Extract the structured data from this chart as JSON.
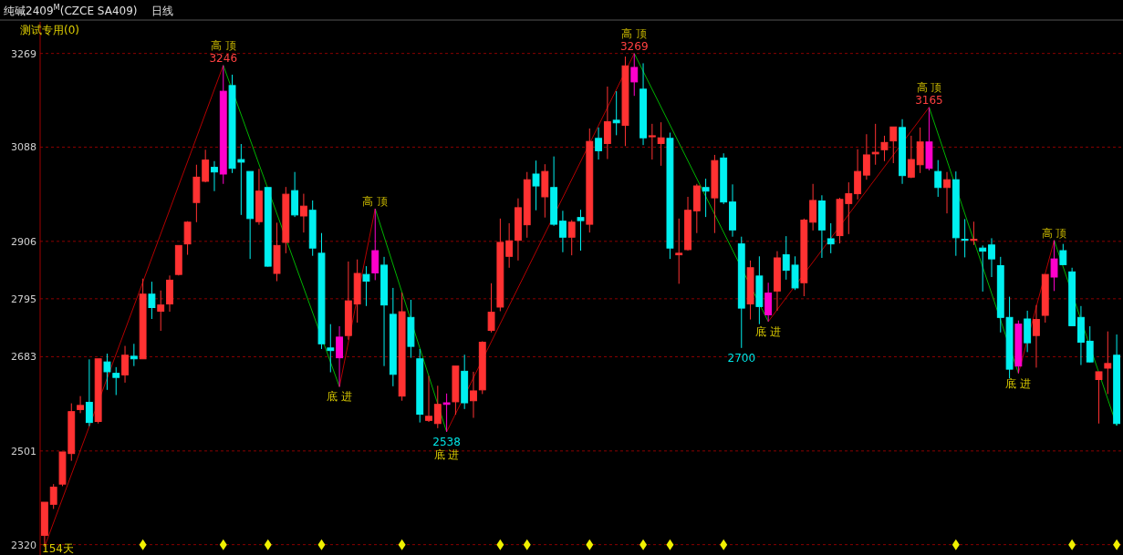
{
  "chart_data": {
    "type": "candlestick",
    "title": "纯碱2409$^{M}$(CZCE SA409)",
    "subtitle": "日线",
    "categories": [
      null,
      null,
      null,
      null,
      null,
      null,
      null,
      null,
      null,
      null,
      null,
      null,
      null,
      null,
      null,
      null,
      null,
      null,
      null,
      null,
      null,
      null,
      null,
      null,
      null,
      null,
      null,
      null,
      null,
      null,
      null,
      null,
      null,
      null,
      null,
      null,
      null,
      null,
      null,
      null,
      null,
      null,
      null,
      null,
      null,
      null,
      null,
      null,
      null,
      null,
      null,
      null,
      null,
      null,
      null,
      null,
      null,
      null,
      null,
      null,
      null,
      null,
      null,
      null,
      null,
      null,
      null,
      null,
      null,
      null,
      null,
      null,
      null,
      null,
      null,
      null,
      null,
      null,
      null,
      null,
      null,
      null,
      null,
      null,
      null,
      null,
      null,
      null,
      null,
      null,
      null,
      null,
      null,
      null,
      null,
      null,
      null,
      null,
      null,
      null,
      null,
      null,
      null,
      null,
      null,
      null,
      null,
      null,
      null,
      null,
      null,
      null,
      null,
      null,
      null,
      null,
      null,
      null,
      null,
      null,
      null
    ],
    "ohlc": [
      [
        2338,
        2402,
        2316,
        2402
      ],
      [
        2398,
        2437,
        2389,
        2431
      ],
      [
        2437,
        2499,
        2433,
        2499
      ],
      [
        2496,
        2593,
        2482,
        2577
      ],
      [
        2581,
        2607,
        2574,
        2589
      ],
      [
        2595,
        2678,
        2549,
        2556
      ],
      [
        2558,
        2679,
        2554,
        2679
      ],
      [
        2673,
        2689,
        2619,
        2654
      ],
      [
        2651,
        2663,
        2609,
        2643
      ],
      [
        2648,
        2704,
        2633,
        2686
      ],
      [
        2684,
        2708,
        2665,
        2679
      ],
      [
        2679,
        2834,
        2679,
        2804
      ],
      [
        2804,
        2828,
        2756,
        2778
      ],
      [
        2771,
        2811,
        2733,
        2783
      ],
      [
        2785,
        2840,
        2770,
        2831
      ],
      [
        2842,
        2898,
        2840,
        2898
      ],
      [
        2901,
        2945,
        2880,
        2943
      ],
      [
        2981,
        3054,
        2943,
        3030
      ],
      [
        3022,
        3083,
        3020,
        3063
      ],
      [
        3049,
        3061,
        3003,
        3040
      ],
      [
        3036,
        3246,
        3017,
        3196
      ],
      [
        3207,
        3228,
        3038,
        3047
      ],
      [
        3064,
        3094,
        2957,
        3059
      ],
      [
        3041,
        3041,
        2872,
        2950
      ],
      [
        2944,
        3046,
        2938,
        3003
      ],
      [
        3010,
        3010,
        2857,
        2858
      ],
      [
        2844,
        2942,
        2829,
        2898
      ],
      [
        2904,
        3011,
        2883,
        2997
      ],
      [
        3004,
        3040,
        2953,
        2957
      ],
      [
        2955,
        2998,
        2923,
        2974
      ],
      [
        2966,
        2985,
        2878,
        2893
      ],
      [
        2883,
        2922,
        2698,
        2708
      ],
      [
        2700,
        2746,
        2653,
        2695
      ],
      [
        2681,
        2742,
        2625,
        2721
      ],
      [
        2724,
        2867,
        2716,
        2791
      ],
      [
        2785,
        2871,
        2749,
        2844
      ],
      [
        2842,
        2858,
        2781,
        2829
      ],
      [
        2845,
        2969,
        2831,
        2888
      ],
      [
        2860,
        2876,
        2665,
        2783
      ],
      [
        2765,
        2816,
        2626,
        2649
      ],
      [
        2607,
        2807,
        2598,
        2770
      ],
      [
        2759,
        2793,
        2681,
        2703
      ],
      [
        2679,
        2698,
        2556,
        2572
      ],
      [
        2560,
        2646,
        2557,
        2568
      ],
      [
        2554,
        2627,
        2545,
        2591
      ],
      [
        2591,
        2612,
        2538,
        2594
      ],
      [
        2596,
        2665,
        2571,
        2665
      ],
      [
        2655,
        2687,
        2582,
        2594
      ],
      [
        2598,
        2654,
        2565,
        2617
      ],
      [
        2619,
        2713,
        2611,
        2711
      ],
      [
        2734,
        2825,
        2730,
        2769
      ],
      [
        2779,
        2950,
        2771,
        2904
      ],
      [
        2877,
        2941,
        2855,
        2907
      ],
      [
        2908,
        2989,
        2869,
        2971
      ],
      [
        2938,
        3040,
        2913,
        3025
      ],
      [
        3036,
        3062,
        2966,
        3013
      ],
      [
        2992,
        3055,
        2952,
        3041
      ],
      [
        3010,
        3070,
        2936,
        2939
      ],
      [
        2945,
        2965,
        2885,
        2914
      ],
      [
        2914,
        2947,
        2879,
        2943
      ],
      [
        2952,
        2967,
        2888,
        2946
      ],
      [
        2939,
        3124,
        2923,
        3099
      ],
      [
        3105,
        3126,
        3064,
        3081
      ],
      [
        3095,
        3205,
        3065,
        3137
      ],
      [
        3140,
        3196,
        3111,
        3135
      ],
      [
        3130,
        3263,
        3090,
        3245
      ],
      [
        3214,
        3269,
        3187,
        3242
      ],
      [
        3200,
        3250,
        3092,
        3106
      ],
      [
        3108,
        3133,
        3064,
        3110
      ],
      [
        3095,
        3136,
        3052,
        3106
      ],
      [
        3105,
        3116,
        2872,
        2893
      ],
      [
        2880,
        2950,
        2824,
        2883
      ],
      [
        2890,
        2992,
        2888,
        2966
      ],
      [
        2965,
        3017,
        2922,
        3013
      ],
      [
        3010,
        3027,
        2953,
        3003
      ],
      [
        2990,
        3073,
        2922,
        3062
      ],
      [
        3067,
        3076,
        2978,
        2982
      ],
      [
        2982,
        3016,
        2915,
        2928
      ],
      [
        2901,
        2915,
        2700,
        2777
      ],
      [
        2785,
        2869,
        2755,
        2855
      ],
      [
        2839,
        2877,
        2746,
        2780
      ],
      [
        2764,
        2826,
        2751,
        2806
      ],
      [
        2810,
        2887,
        2772,
        2874
      ],
      [
        2880,
        2916,
        2832,
        2850
      ],
      [
        2860,
        2877,
        2812,
        2816
      ],
      [
        2826,
        2950,
        2800,
        2947
      ],
      [
        2943,
        3017,
        2927,
        2985
      ],
      [
        2984,
        2995,
        2874,
        2928
      ],
      [
        2911,
        2941,
        2883,
        2901
      ],
      [
        2917,
        2990,
        2902,
        2987
      ],
      [
        2979,
        3020,
        2920,
        2998
      ],
      [
        2998,
        3084,
        2987,
        3041
      ],
      [
        3034,
        3113,
        3025,
        3073
      ],
      [
        3075,
        3133,
        3054,
        3078
      ],
      [
        3083,
        3110,
        3061,
        3097
      ],
      [
        3100,
        3127,
        3057,
        3127
      ],
      [
        3126,
        3142,
        3017,
        3033
      ],
      [
        3030,
        3110,
        3028,
        3064
      ],
      [
        3054,
        3126,
        3038,
        3098
      ],
      [
        3047,
        3165,
        3043,
        3098
      ],
      [
        3041,
        3063,
        2992,
        3010
      ],
      [
        3010,
        3040,
        2960,
        3025
      ],
      [
        3025,
        3041,
        2878,
        2913
      ],
      [
        2910,
        2949,
        2875,
        2908
      ],
      [
        2908,
        2944,
        2899,
        2910
      ],
      [
        2893,
        2898,
        2809,
        2887
      ],
      [
        2899,
        2912,
        2837,
        2872
      ],
      [
        2859,
        2876,
        2730,
        2759
      ],
      [
        2759,
        2799,
        2641,
        2659
      ],
      [
        2665,
        2753,
        2651,
        2746
      ],
      [
        2756,
        2772,
        2692,
        2710
      ],
      [
        2724,
        2783,
        2662,
        2755
      ],
      [
        2763,
        2842,
        2749,
        2842
      ],
      [
        2837,
        2908,
        2810,
        2872
      ],
      [
        2888,
        2901,
        2860,
        2861
      ],
      [
        2847,
        2855,
        2742,
        2743
      ],
      [
        2759,
        2781,
        2667,
        2711
      ],
      [
        2713,
        2742,
        2672,
        2673
      ],
      [
        2639,
        2654,
        2554,
        2654
      ],
      [
        2661,
        2732,
        2611,
        2670
      ],
      [
        2686,
        2726,
        2550,
        2554
      ]
    ],
    "colors": [
      "#ff3232",
      "#ff3232",
      "#ff3232",
      "#ff3232",
      "#ff3232",
      "#00f0f0",
      "#ff3232",
      "#00f0f0",
      "#00f0f0",
      "#ff3232",
      "#00f0f0",
      "#ff3232",
      "#00f0f0",
      "#ff3232",
      "#ff3232",
      "#ff3232",
      "#ff3232",
      "#ff3232",
      "#ff3232",
      "#00f0f0",
      "#ff00cc",
      "#00f0f0",
      "#00f0f0",
      "#00f0f0",
      "#ff3232",
      "#00f0f0",
      "#ff3232",
      "#ff3232",
      "#00f0f0",
      "#ff3232",
      "#00f0f0",
      "#00f0f0",
      "#00f0f0",
      "#ff00cc",
      "#ff3232",
      "#ff3232",
      "#00f0f0",
      "#ff00cc",
      "#00f0f0",
      "#00f0f0",
      "#ff3232",
      "#00f0f0",
      "#00f0f0",
      "#ff3232",
      "#ff3232",
      "#ff00cc",
      "#ff3232",
      "#00f0f0",
      "#ff3232",
      "#ff3232",
      "#ff3232",
      "#ff3232",
      "#ff3232",
      "#ff3232",
      "#ff3232",
      "#00f0f0",
      "#ff3232",
      "#00f0f0",
      "#00f0f0",
      "#ff3232",
      "#00f0f0",
      "#ff3232",
      "#00f0f0",
      "#ff3232",
      "#00f0f0",
      "#ff3232",
      "#ff00cc",
      "#00f0f0",
      "#ff3232",
      "#ff3232",
      "#00f0f0",
      "#ff3232",
      "#ff3232",
      "#ff3232",
      "#00f0f0",
      "#ff3232",
      "#00f0f0",
      "#00f0f0",
      "#00f0f0",
      "#ff3232",
      "#00f0f0",
      "#ff00cc",
      "#ff3232",
      "#00f0f0",
      "#00f0f0",
      "#ff3232",
      "#ff3232",
      "#00f0f0",
      "#00f0f0",
      "#ff3232",
      "#ff3232",
      "#ff3232",
      "#ff3232",
      "#ff3232",
      "#ff3232",
      "#ff3232",
      "#00f0f0",
      "#ff3232",
      "#ff3232",
      "#ff00cc",
      "#00f0f0",
      "#ff3232",
      "#00f0f0",
      "#00f0f0",
      "#ff3232",
      "#00f0f0",
      "#00f0f0",
      "#00f0f0",
      "#00f0f0",
      "#ff00cc",
      "#00f0f0",
      "#ff3232",
      "#ff3232",
      "#ff00cc",
      "#00f0f0",
      "#00f0f0",
      "#00f0f0",
      "#00f0f0",
      "#ff3232",
      "#ff3232",
      "#00f0f0"
    ],
    "series": [
      {
        "type": "scatter",
        "marker": "diamond",
        "color": "#f0f000",
        "values": [
          null,
          null,
          null,
          null,
          null,
          null,
          null,
          null,
          null,
          null,
          null,
          2320,
          null,
          null,
          null,
          null,
          null,
          null,
          null,
          null,
          2320,
          null,
          null,
          null,
          null,
          2320,
          null,
          null,
          null,
          null,
          null,
          2320,
          null,
          null,
          null,
          null,
          null,
          null,
          null,
          null,
          2320,
          null,
          null,
          null,
          null,
          null,
          null,
          null,
          null,
          null,
          null,
          2320,
          null,
          null,
          2320,
          null,
          null,
          null,
          null,
          null,
          null,
          2320,
          null,
          null,
          null,
          null,
          null,
          2320,
          null,
          null,
          2320,
          null,
          null,
          null,
          null,
          null,
          2320,
          null,
          null,
          null,
          null,
          null,
          null,
          null,
          null,
          null,
          null,
          null,
          null,
          null,
          null,
          null,
          null,
          null,
          null,
          null,
          null,
          null,
          null,
          null,
          null,
          null,
          2320,
          null,
          null,
          null,
          null,
          null,
          null,
          null,
          null,
          null,
          null,
          null,
          null,
          2320,
          null,
          null,
          null,
          null,
          2320
        ]
      }
    ],
    "ylim": [
      2300,
      3330
    ],
    "yticks": [
      2320,
      2501,
      2683,
      2795,
      2906,
      3088,
      3269
    ],
    "grid": "y",
    "tick_labels": "y",
    "annotations": [
      "测试专用(0)",
      "154天",
      {
        "text": "3246",
        "y": 3246
      },
      {
        "text": "高 顶",
        "y": 3246
      },
      {
        "text": "底 进",
        "y": 2625
      },
      {
        "text": "高 顶",
        "y": 2969
      },
      {
        "text": "2538",
        "y": 2538
      },
      {
        "text": "底 进",
        "y": 2538
      },
      {
        "text": "3269",
        "y": 3269
      },
      {
        "text": "高 顶",
        "y": 3269
      },
      {
        "text": "2700",
        "y": 2700
      },
      {
        "text": "底 进",
        "y": 2751
      },
      {
        "text": "3165",
        "y": 3165
      },
      {
        "text": "高 顶",
        "y": 3165
      },
      {
        "text": "底 进",
        "y": 2651
      },
      {
        "text": "高 顶",
        "y": 2908
      }
    ]
  }
}
